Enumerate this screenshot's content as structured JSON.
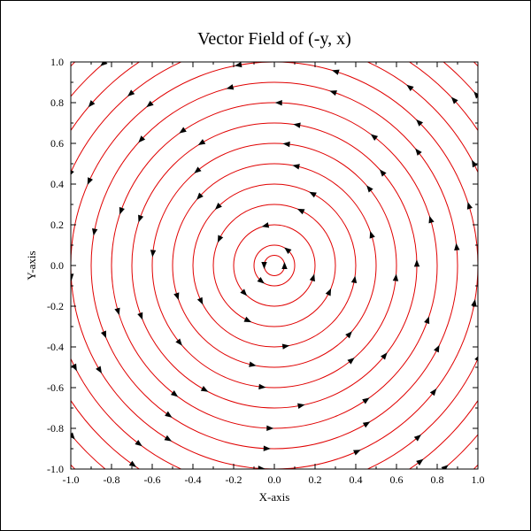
{
  "chart_data": {
    "type": "streamline",
    "title": "Vector Field of (-y, x)",
    "xlabel": "X-axis",
    "ylabel": "Y-axis",
    "xlim": [
      -1.0,
      1.0
    ],
    "ylim": [
      -1.0,
      1.0
    ],
    "x_ticks": [
      "-1.0",
      "-0.8",
      "-0.6",
      "-0.4",
      "-0.2",
      "0.0",
      "0.2",
      "0.4",
      "0.6",
      "0.8",
      "1.0"
    ],
    "y_ticks": [
      "-1.0",
      "-0.8",
      "-0.6",
      "-0.4",
      "-0.2",
      "0.0",
      "0.2",
      "0.4",
      "0.6",
      "0.8",
      "1.0"
    ],
    "field": {
      "u": "-y",
      "v": "x"
    },
    "streamline_radii": [
      0.05,
      0.1,
      0.2,
      0.3,
      0.4,
      0.5,
      0.6,
      0.7,
      0.8,
      0.9,
      1.0,
      1.1,
      1.2,
      1.3,
      1.4
    ],
    "streamline_color": "#e00000",
    "arrow_color": "#000000",
    "direction": "counterclockwise",
    "grid": false
  }
}
